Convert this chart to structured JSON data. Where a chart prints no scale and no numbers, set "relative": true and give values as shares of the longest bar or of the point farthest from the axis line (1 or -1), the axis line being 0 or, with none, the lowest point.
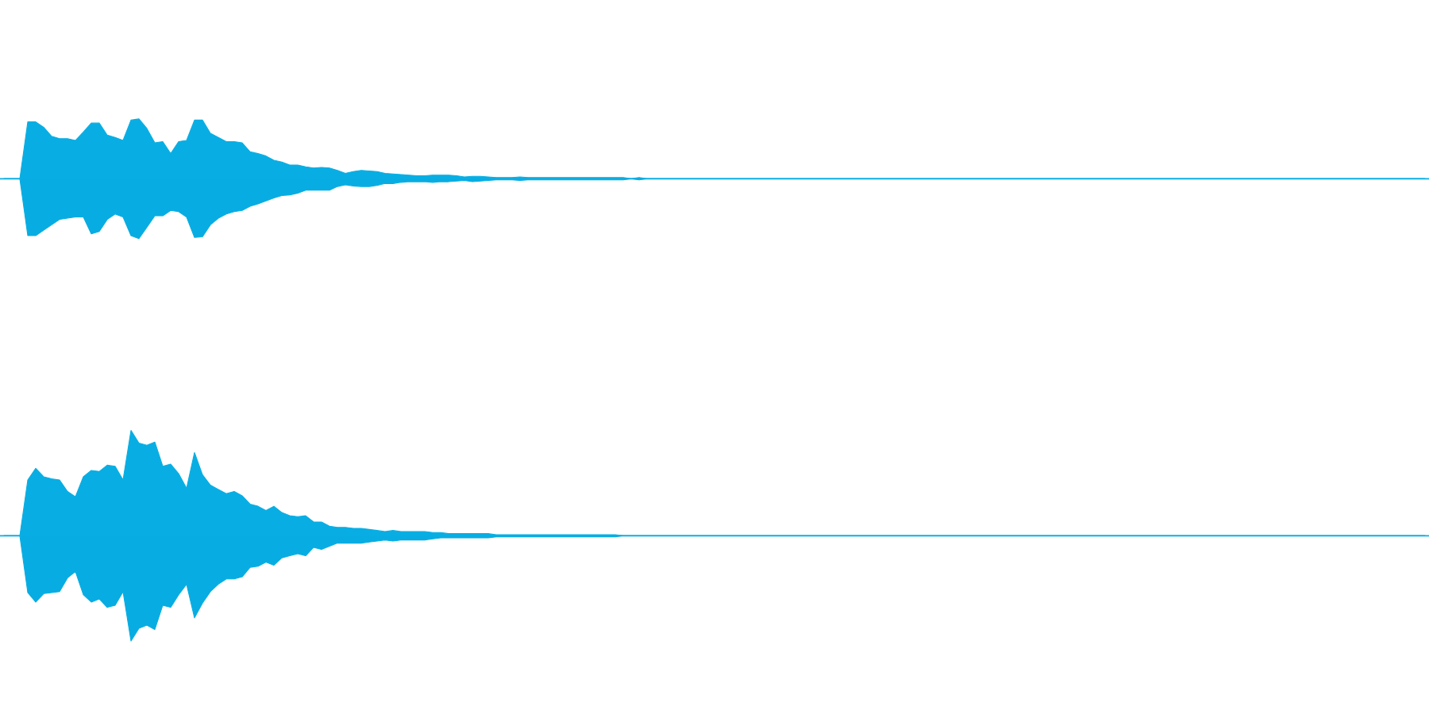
{
  "chart_data": [
    {
      "type": "area",
      "relative": true,
      "categories": [
        null,
        null,
        null,
        null,
        null,
        null,
        null,
        null,
        null,
        null,
        null,
        null,
        null,
        null,
        null,
        null,
        null,
        null,
        null,
        null,
        null,
        null,
        null,
        null,
        null,
        null,
        null,
        null,
        null,
        null,
        null,
        null,
        null,
        null,
        null,
        null,
        null,
        null,
        null,
        null,
        null,
        null,
        null,
        null,
        null,
        null,
        null,
        null,
        null,
        null,
        null,
        null,
        null,
        null,
        null,
        null,
        null,
        null,
        null,
        null,
        null,
        null,
        null,
        null,
        null,
        null,
        null,
        null,
        null,
        null,
        null,
        null,
        null,
        null,
        null,
        null,
        null,
        null,
        null,
        null,
        null,
        null,
        null,
        null,
        null,
        null,
        null,
        null,
        null,
        null,
        null,
        null,
        null,
        null,
        null,
        null,
        null,
        null,
        null,
        null,
        null,
        null,
        null,
        null,
        null,
        null,
        null,
        null,
        null,
        null,
        null,
        null,
        null,
        null,
        null,
        null,
        null,
        null,
        null,
        null,
        null,
        null,
        null,
        null,
        null,
        null,
        null,
        null,
        null,
        null,
        null,
        null,
        null,
        null,
        null,
        null,
        null,
        null,
        null,
        null,
        null,
        null,
        null,
        null,
        null,
        null,
        null,
        null,
        null,
        null,
        null,
        null,
        null,
        null,
        null,
        null,
        null,
        null,
        null,
        null,
        null,
        null,
        null,
        null,
        null,
        null,
        null,
        null,
        null,
        null,
        null,
        null,
        null,
        null,
        null,
        null,
        null,
        null,
        null,
        null
      ],
      "series": [
        {
          "color": "#08aee3",
          "values": [
            0,
            0,
            0,
            0.95,
            0.95,
            0.86,
            0.71,
            0.67,
            0.67,
            0.64,
            0.78,
            0.93,
            0.93,
            0.73,
            0.69,
            0.64,
            0.98,
            1,
            0.84,
            0.6,
            0.62,
            0.42,
            0.62,
            0.64,
            0.98,
            0.98,
            0.76,
            0.69,
            0.62,
            0.62,
            0.6,
            0.45,
            0.42,
            0.38,
            0.31,
            0.28,
            0.23,
            0.23,
            0.2,
            0.18,
            0.19,
            0.18,
            0.14,
            0.09,
            0.12,
            0.14,
            0.13,
            0.12,
            0.09,
            0.08,
            0.07,
            0.06,
            0.05,
            0.05,
            0.06,
            0.06,
            0.06,
            0.05,
            0.03,
            0.04,
            0.04,
            0.03,
            0.02,
            0.02,
            0.02,
            0.03,
            0.02,
            0.02,
            0.02,
            0.02,
            0.02,
            0.02,
            0.02,
            0.02,
            0.02,
            0.02,
            0.02,
            0.02,
            0.02,
            0,
            0.02,
            0,
            0,
            0,
            0,
            0,
            0,
            0,
            0,
            0,
            0,
            0,
            0,
            0,
            0,
            0,
            0,
            0,
            0,
            0,
            0,
            0,
            0,
            0,
            0,
            0,
            0,
            0,
            0,
            0,
            0,
            0,
            0,
            0,
            0,
            0,
            0,
            0,
            0,
            0,
            0,
            0,
            0,
            0,
            0,
            0,
            0,
            0,
            0,
            0,
            0,
            0,
            0,
            0,
            0,
            0,
            0,
            0,
            0,
            0,
            0,
            0,
            0,
            0,
            0,
            0,
            0,
            0,
            0,
            0,
            0,
            0,
            0,
            0,
            0,
            0,
            0,
            0,
            0,
            0,
            0,
            0,
            0,
            0,
            0,
            0,
            0,
            0,
            0,
            0,
            0,
            0,
            0,
            0,
            0,
            0,
            0,
            0,
            0,
            0
          ]
        },
        {
          "color": "#07ade2",
          "values": [
            0,
            0,
            0,
            -0.95,
            -0.95,
            -0.86,
            -0.77,
            -0.68,
            -0.66,
            -0.64,
            -0.64,
            -0.92,
            -0.88,
            -0.68,
            -0.59,
            -0.64,
            -0.95,
            -1,
            -0.81,
            -0.62,
            -0.62,
            -0.53,
            -0.55,
            -0.64,
            -0.98,
            -0.97,
            -0.77,
            -0.66,
            -0.59,
            -0.55,
            -0.53,
            -0.46,
            -0.42,
            -0.37,
            -0.32,
            -0.28,
            -0.27,
            -0.24,
            -0.19,
            -0.19,
            -0.19,
            -0.19,
            -0.13,
            -0.1,
            -0.12,
            -0.13,
            -0.13,
            -0.11,
            -0.08,
            -0.08,
            -0.06,
            -0.05,
            -0.05,
            -0.05,
            -0.06,
            -0.05,
            -0.05,
            -0.04,
            -0.03,
            -0.05,
            -0.04,
            -0.03,
            -0.02,
            -0.02,
            -0.02,
            -0.03,
            -0.02,
            -0.02,
            -0.02,
            -0.02,
            -0.02,
            -0.02,
            -0.02,
            -0.02,
            -0.02,
            -0.02,
            -0.02,
            -0.02,
            -0.02,
            0,
            -0.02,
            0,
            0,
            0,
            0,
            0,
            0,
            0,
            0,
            0,
            0,
            0,
            0,
            0,
            0,
            0,
            0,
            0,
            0,
            0,
            0,
            0,
            0,
            0,
            0,
            0,
            0,
            0,
            0,
            0,
            0,
            0,
            0,
            0,
            0,
            0,
            0,
            0,
            0,
            0,
            0,
            0,
            0,
            0,
            0,
            0,
            0,
            0,
            0,
            0,
            0,
            0,
            0,
            0,
            0,
            0,
            0,
            0,
            0,
            0,
            0,
            0,
            0,
            0,
            0,
            0,
            0,
            0,
            0,
            0,
            0,
            0,
            0,
            0,
            0,
            0,
            0,
            0,
            0,
            0,
            0,
            0,
            0,
            0,
            0,
            0,
            0,
            0,
            0,
            0,
            0,
            0,
            0,
            0,
            0,
            0,
            0,
            0,
            0,
            0
          ]
        }
      ]
    },
    {
      "type": "area",
      "relative": true,
      "categories": [
        null,
        null,
        null,
        null,
        null,
        null,
        null,
        null,
        null,
        null,
        null,
        null,
        null,
        null,
        null,
        null,
        null,
        null,
        null,
        null,
        null,
        null,
        null,
        null,
        null,
        null,
        null,
        null,
        null,
        null,
        null,
        null,
        null,
        null,
        null,
        null,
        null,
        null,
        null,
        null,
        null,
        null,
        null,
        null,
        null,
        null,
        null,
        null,
        null,
        null,
        null,
        null,
        null,
        null,
        null,
        null,
        null,
        null,
        null,
        null,
        null,
        null,
        null,
        null,
        null,
        null,
        null,
        null,
        null,
        null,
        null,
        null,
        null,
        null,
        null,
        null,
        null,
        null,
        null,
        null,
        null,
        null,
        null,
        null,
        null,
        null,
        null,
        null,
        null,
        null,
        null,
        null,
        null,
        null,
        null,
        null,
        null,
        null,
        null,
        null,
        null,
        null,
        null,
        null,
        null,
        null,
        null,
        null,
        null,
        null,
        null,
        null,
        null,
        null,
        null,
        null,
        null,
        null,
        null,
        null,
        null,
        null,
        null,
        null,
        null,
        null,
        null,
        null,
        null,
        null,
        null,
        null,
        null,
        null,
        null,
        null,
        null,
        null,
        null,
        null,
        null,
        null,
        null,
        null,
        null,
        null,
        null,
        null,
        null,
        null,
        null,
        null,
        null,
        null,
        null,
        null,
        null,
        null,
        null,
        null,
        null,
        null,
        null,
        null,
        null,
        null,
        null,
        null,
        null,
        null,
        null,
        null,
        null,
        null,
        null,
        null,
        null,
        null,
        null,
        null
      ],
      "series": [
        {
          "color": "#08aee3",
          "values": [
            0,
            0,
            0,
            0.53,
            0.64,
            0.56,
            0.54,
            0.53,
            0.42,
            0.37,
            0.56,
            0.62,
            0.61,
            0.67,
            0.66,
            0.53,
            1,
            0.88,
            0.86,
            0.89,
            0.66,
            0.68,
            0.59,
            0.45,
            0.79,
            0.58,
            0.48,
            0.44,
            0.4,
            0.42,
            0.38,
            0.3,
            0.28,
            0.24,
            0.28,
            0.22,
            0.19,
            0.18,
            0.19,
            0.13,
            0.13,
            0.09,
            0.08,
            0.08,
            0.07,
            0.07,
            0.06,
            0.05,
            0.04,
            0.05,
            0.04,
            0.04,
            0.04,
            0.04,
            0.03,
            0.03,
            0.02,
            0.02,
            0.02,
            0.02,
            0.02,
            0.02,
            0.01,
            0.01,
            0.01,
            0.01,
            0.01,
            0.01,
            0.01,
            0.01,
            0.01,
            0.01,
            0.01,
            0.01,
            0.01,
            0.01,
            0.01,
            0.01,
            0,
            0,
            0,
            0,
            0,
            0,
            0,
            0,
            0,
            0,
            0,
            0,
            0,
            0,
            0,
            0,
            0,
            0,
            0,
            0,
            0,
            0,
            0,
            0,
            0,
            0,
            0,
            0,
            0,
            0,
            0,
            0,
            0,
            0,
            0,
            0,
            0,
            0,
            0,
            0,
            0,
            0,
            0,
            0,
            0,
            0,
            0,
            0,
            0,
            0,
            0,
            0,
            0,
            0,
            0,
            0,
            0,
            0,
            0,
            0,
            0,
            0,
            0,
            0,
            0,
            0,
            0,
            0,
            0,
            0,
            0,
            0,
            0,
            0,
            0,
            0,
            0,
            0,
            0,
            0,
            0,
            0,
            0,
            0,
            0,
            0,
            0,
            0,
            0,
            0,
            0,
            0,
            0,
            0,
            0,
            0,
            0,
            0,
            0,
            0,
            0,
            0
          ]
        },
        {
          "color": "#07ade2",
          "values": [
            0,
            0,
            0,
            -0.54,
            -0.63,
            -0.55,
            -0.54,
            -0.53,
            -0.4,
            -0.34,
            -0.56,
            -0.63,
            -0.6,
            -0.68,
            -0.66,
            -0.53,
            -1,
            -0.88,
            -0.85,
            -0.89,
            -0.66,
            -0.68,
            -0.56,
            -0.46,
            -0.78,
            -0.64,
            -0.53,
            -0.46,
            -0.41,
            -0.41,
            -0.39,
            -0.3,
            -0.29,
            -0.25,
            -0.28,
            -0.21,
            -0.19,
            -0.17,
            -0.19,
            -0.11,
            -0.13,
            -0.1,
            -0.07,
            -0.07,
            -0.07,
            -0.07,
            -0.06,
            -0.05,
            -0.04,
            -0.05,
            -0.04,
            -0.04,
            -0.04,
            -0.04,
            -0.03,
            -0.02,
            -0.02,
            -0.02,
            -0.02,
            -0.02,
            -0.02,
            -0.02,
            -0.01,
            -0.01,
            -0.01,
            -0.01,
            -0.01,
            -0.01,
            -0.01,
            -0.01,
            -0.01,
            -0.01,
            -0.01,
            -0.01,
            -0.01,
            -0.01,
            -0.01,
            -0.01,
            0,
            0,
            0,
            0,
            0,
            0,
            0,
            0,
            0,
            0,
            0,
            0,
            0,
            0,
            0,
            0,
            0,
            0,
            0,
            0,
            0,
            0,
            0,
            0,
            0,
            0,
            0,
            0,
            0,
            0,
            0,
            0,
            0,
            0,
            0,
            0,
            0,
            0,
            0,
            0,
            0,
            0,
            0,
            0,
            0,
            0,
            0,
            0,
            0,
            0,
            0,
            0,
            0,
            0,
            0,
            0,
            0,
            0,
            0,
            0,
            0,
            0,
            0,
            0,
            0,
            0,
            0,
            0,
            0,
            0,
            0,
            0,
            0,
            0,
            0,
            0,
            0,
            0,
            0,
            0,
            0,
            0,
            0,
            0,
            0,
            0,
            0,
            0,
            0,
            0,
            0,
            0,
            0,
            0,
            0,
            0,
            0,
            0,
            0,
            0,
            0,
            0
          ]
        }
      ]
    }
  ]
}
